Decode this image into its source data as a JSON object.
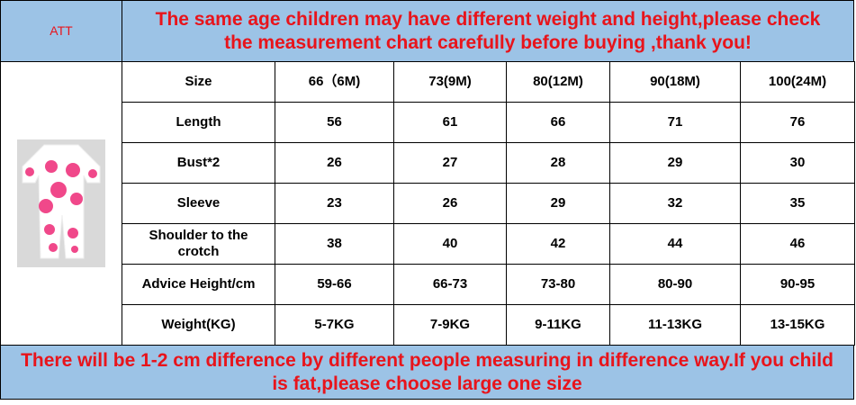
{
  "header": {
    "att": "ATT",
    "note": "The same age children may have different weight and height,please check the measurement chart carefully before buying ,thank you!"
  },
  "table": {
    "rows": [
      [
        "Size",
        "66（6M)",
        "73(9M)",
        "80(12M)",
        "90(18M)",
        "100(24M)"
      ],
      [
        "Length",
        56,
        61,
        66,
        71,
        76
      ],
      [
        "Bust*2",
        26,
        27,
        28,
        29,
        30
      ],
      [
        "Sleeve",
        23,
        26,
        29,
        32,
        35
      ],
      [
        "Shoulder to the crotch",
        38,
        40,
        42,
        44,
        46
      ],
      [
        "Advice Height/cm",
        "59-66",
        "66-73",
        "73-80",
        "80-90",
        "90-95"
      ],
      [
        "Weight(KG)",
        "5-7KG",
        "7-9KG",
        "9-11KG",
        "11-13KG",
        "13-15KG"
      ]
    ]
  },
  "footer": {
    "note": "There will be 1-2 cm difference by different people measuring in difference way.If you child is fat,please choose large one size"
  }
}
